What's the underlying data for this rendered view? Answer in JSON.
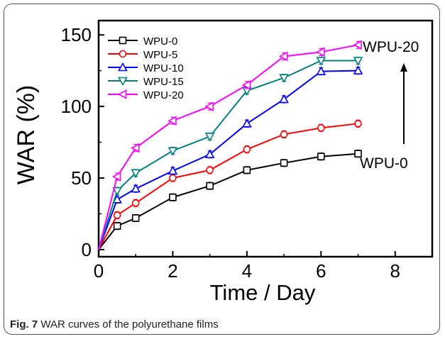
{
  "chart_data": {
    "type": "line",
    "title": "",
    "xlabel": "Time / Day",
    "ylabel": "WAR (%)",
    "xlim": [
      0,
      9
    ],
    "ylim": [
      -5,
      160
    ],
    "xticks": [
      0,
      2,
      4,
      6,
      8
    ],
    "yticks": [
      0,
      50,
      100,
      150
    ],
    "x": [
      0,
      0.5,
      1,
      2,
      3,
      4,
      5,
      6,
      7
    ],
    "legend_position": "top-left",
    "grid": false,
    "series": [
      {
        "name": "WPU-0",
        "color": "#000000",
        "marker": "square",
        "values": [
          0,
          16.5,
          22,
          36.5,
          44.5,
          55.5,
          60.5,
          65,
          67
        ]
      },
      {
        "name": "WPU-5",
        "color": "#ff0000",
        "marker": "circle",
        "values": [
          0,
          24,
          32.5,
          50,
          55.5,
          70,
          80.5,
          85,
          88
        ]
      },
      {
        "name": "WPU-10",
        "color": "#0000ff",
        "marker": "triangle-up",
        "values": [
          0,
          35,
          42.5,
          55,
          66.5,
          88,
          105,
          124.5,
          125
        ]
      },
      {
        "name": "WPU-15",
        "color": "#008080",
        "marker": "triangle-down",
        "values": [
          0,
          41,
          53.5,
          69,
          79,
          111,
          120,
          132,
          132
        ]
      },
      {
        "name": "WPU-20",
        "color": "#ff00ff",
        "marker": "triangle-left",
        "values": [
          0,
          51,
          71,
          90,
          100,
          115,
          135,
          138,
          143
        ]
      }
    ],
    "annotations": [
      {
        "id": "top",
        "text": "WPU-20"
      },
      {
        "id": "bottom",
        "text": "WPU-0"
      }
    ]
  },
  "caption": {
    "label": "Fig. 7",
    "text": " WAR curves of the polyurethane films"
  }
}
